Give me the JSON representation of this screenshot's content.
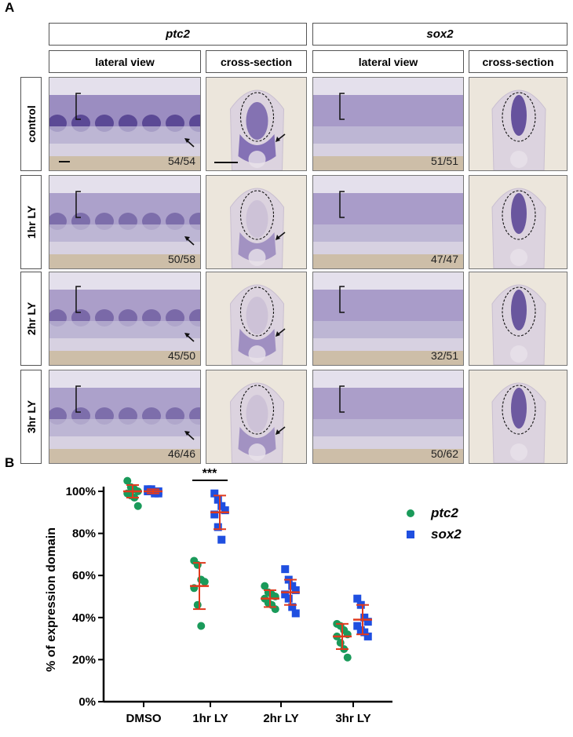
{
  "panel_a": {
    "letter": "A",
    "genes": [
      "ptc2",
      "sox2"
    ],
    "views": [
      "lateral view",
      "cross-section",
      "lateral view",
      "cross-section"
    ],
    "rows": [
      {
        "label": "control",
        "ptc2_count": "54/54",
        "sox2_count": "51/51"
      },
      {
        "label": "1hr LY",
        "ptc2_count": "50/58",
        "sox2_count": "47/47"
      },
      {
        "label": "2hr LY",
        "ptc2_count": "45/50",
        "sox2_count": "32/51"
      },
      {
        "label": "3hr LY",
        "ptc2_count": "46/46",
        "sox2_count": "50/62"
      }
    ]
  },
  "panel_b": {
    "letter": "B",
    "significance": "***"
  },
  "chart_data": {
    "type": "scatter",
    "ylabel": "% of expression domain",
    "categories": [
      "DMSO",
      "1hr LY",
      "2hr LY",
      "3hr LY"
    ],
    "ylim": [
      0,
      100
    ],
    "yticks": [
      "0%",
      "20%",
      "40%",
      "60%",
      "80%",
      "100%"
    ],
    "legend_position": "top-right",
    "series": [
      {
        "name": "ptc2",
        "color": "#1a9a5a",
        "marker": "circle",
        "mean": [
          100,
          55,
          49,
          31
        ],
        "sd": [
          3,
          11,
          4,
          6
        ],
        "points": [
          [
            105,
            102,
            101,
            100,
            99,
            98,
            97,
            93
          ],
          [
            67,
            65,
            58,
            57,
            54,
            46,
            36
          ],
          [
            55,
            52,
            51,
            50,
            49,
            47,
            46,
            44
          ],
          [
            37,
            36,
            34,
            32,
            31,
            28,
            25,
            21
          ]
        ]
      },
      {
        "name": "sox2",
        "color": "#1f4fe0",
        "marker": "square",
        "mean": [
          100,
          90,
          52,
          39
        ],
        "sd": [
          1,
          8,
          6,
          7
        ],
        "points": [
          [
            101,
            101,
            100,
            100,
            100,
            100,
            99,
            99
          ],
          [
            99,
            96,
            93,
            91,
            89,
            83,
            77
          ],
          [
            63,
            58,
            55,
            53,
            51,
            49,
            45,
            42
          ],
          [
            49,
            46,
            40,
            38,
            36,
            34,
            33,
            31
          ]
        ]
      }
    ],
    "error_bar_color": "#e03a1e"
  }
}
